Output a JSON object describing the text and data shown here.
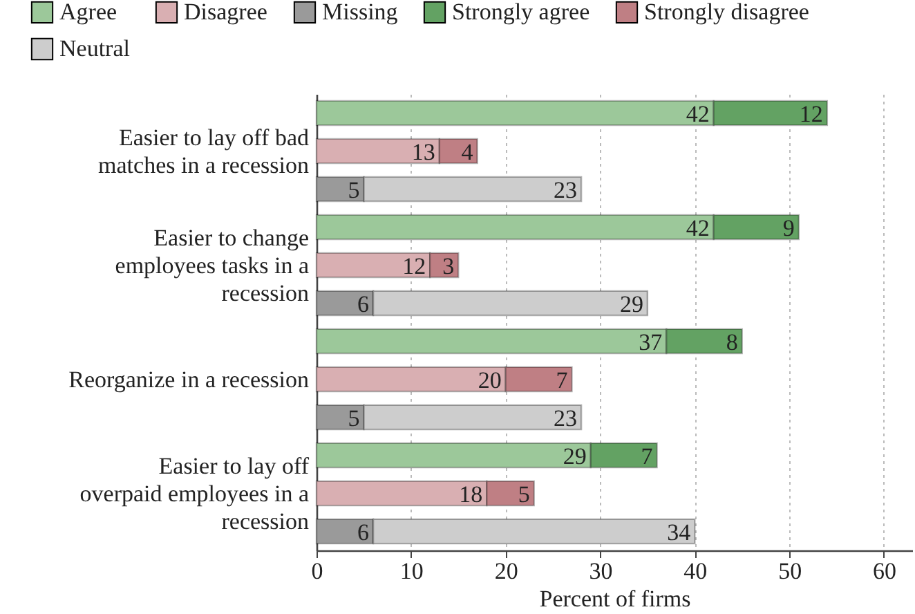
{
  "chart_data": {
    "type": "bar",
    "orientation": "horizontal",
    "stacked": true,
    "xlabel": "Percent of firms",
    "categories": [
      null,
      "Easier to lay off bad matches in a recession",
      null,
      null,
      "Easier to change employees tasks in a recession",
      null,
      null,
      "Reorganize in a recession",
      null,
      null,
      "Easier to lay off overpaid employees in a recession",
      null
    ],
    "series": [
      {
        "name": "Agree",
        "color": "#9cc89a",
        "values": [
          42,
          null,
          null,
          42,
          null,
          null,
          37,
          null,
          null,
          29,
          null,
          null
        ]
      },
      {
        "name": "Strongly agree",
        "color": "#63a263",
        "values": [
          12,
          null,
          null,
          9,
          null,
          null,
          8,
          null,
          null,
          7,
          null,
          null
        ]
      },
      {
        "name": "Disagree",
        "color": "#d9afb2",
        "values": [
          null,
          13,
          null,
          null,
          12,
          null,
          null,
          20,
          null,
          null,
          18,
          null
        ]
      },
      {
        "name": "Strongly disagree",
        "color": "#bf7f84",
        "values": [
          null,
          4,
          null,
          null,
          3,
          null,
          null,
          7,
          null,
          null,
          5,
          null
        ]
      },
      {
        "name": "Missing",
        "color": "#9a9a9a",
        "values": [
          null,
          null,
          5,
          null,
          null,
          6,
          null,
          null,
          5,
          null,
          null,
          6
        ]
      },
      {
        "name": "Neutral",
        "color": "#cdcdcd",
        "values": [
          null,
          null,
          23,
          null,
          null,
          29,
          null,
          null,
          23,
          null,
          null,
          34
        ]
      }
    ],
    "xlim": [
      0,
      63
    ],
    "xticks": [
      0,
      10,
      20,
      30,
      40,
      50,
      60
    ],
    "grid": "x",
    "legend": "top",
    "data_labels": true
  }
}
